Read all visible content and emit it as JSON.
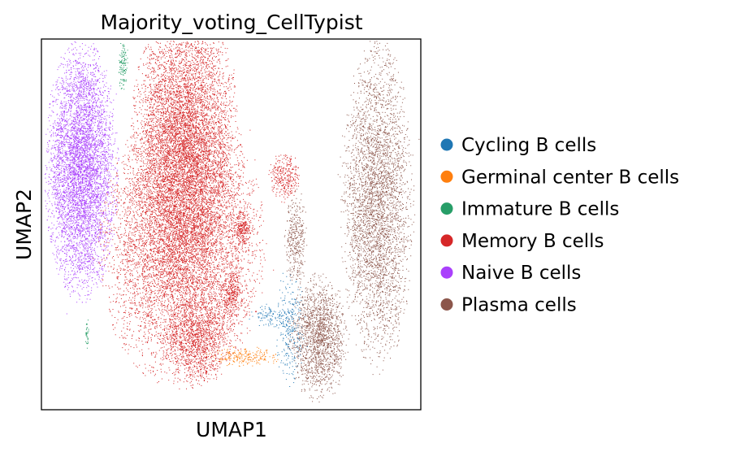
{
  "chart_data": {
    "type": "scatter",
    "title": "Majority_voting_CellTypist",
    "xlabel": "UMAP1",
    "ylabel": "UMAP2",
    "xlim": [
      0,
      10
    ],
    "ylim": [
      0,
      10
    ],
    "grid": false,
    "ticks": false,
    "legend_position": "right-outside",
    "legend": [
      {
        "label": "Cycling B cells",
        "color": "#1f77b4"
      },
      {
        "label": "Germinal center B cells",
        "color": "#ff7f0e"
      },
      {
        "label": "Immature B cells",
        "color": "#279e68"
      },
      {
        "label": "Memory B cells",
        "color": "#d62728"
      },
      {
        "label": "Naive B cells",
        "color": "#aa40fc"
      },
      {
        "label": "Plasma cells",
        "color": "#8c564b"
      }
    ],
    "series": [
      {
        "name": "Naive B cells",
        "color": "#aa40fc",
        "clusters": [
          {
            "cx": 1.05,
            "cy": 6.5,
            "sx": 0.42,
            "sy": 1.55,
            "n": 5500
          }
        ]
      },
      {
        "name": "Memory B cells",
        "color": "#d62728",
        "clusters": [
          {
            "cx": 3.8,
            "cy": 7.4,
            "sx": 0.62,
            "sy": 1.6,
            "n": 6500
          },
          {
            "cx": 3.7,
            "cy": 4.4,
            "sx": 0.95,
            "sy": 1.65,
            "n": 7500
          },
          {
            "cx": 4.1,
            "cy": 1.9,
            "sx": 0.4,
            "sy": 0.55,
            "n": 1100
          },
          {
            "cx": 5.3,
            "cy": 4.9,
            "sx": 0.12,
            "sy": 0.22,
            "n": 220
          },
          {
            "cx": 5.0,
            "cy": 3.1,
            "sx": 0.14,
            "sy": 0.3,
            "n": 280
          },
          {
            "cx": 6.4,
            "cy": 6.3,
            "sx": 0.18,
            "sy": 0.3,
            "n": 320
          }
        ]
      },
      {
        "name": "Plasma cells",
        "color": "#8c564b",
        "clusters": [
          {
            "cx": 8.85,
            "cy": 5.5,
            "sx": 0.42,
            "sy": 1.95,
            "n": 3800
          },
          {
            "cx": 7.3,
            "cy": 1.95,
            "sx": 0.35,
            "sy": 0.75,
            "n": 1700
          },
          {
            "cx": 6.7,
            "cy": 4.6,
            "sx": 0.13,
            "sy": 0.6,
            "n": 380
          }
        ]
      },
      {
        "name": "Cycling B cells",
        "color": "#1f77b4",
        "clusters": [
          {
            "cx": 6.55,
            "cy": 2.25,
            "sx": 0.18,
            "sy": 0.7,
            "n": 280
          },
          {
            "cx": 6.1,
            "cy": 2.55,
            "sx": 0.28,
            "sy": 0.14,
            "n": 110
          }
        ]
      },
      {
        "name": "Germinal center B cells",
        "color": "#ff7f0e",
        "clusters": [
          {
            "cx": 5.35,
            "cy": 1.45,
            "sx": 0.45,
            "sy": 0.12,
            "n": 240
          }
        ]
      },
      {
        "name": "Immature B cells",
        "color": "#279e68",
        "clusters": [
          {
            "cx": 2.15,
            "cy": 9.3,
            "sx": 0.06,
            "sy": 0.32,
            "n": 120
          },
          {
            "cx": 1.2,
            "cy": 2.1,
            "sx": 0.025,
            "sy": 0.22,
            "n": 35
          }
        ]
      }
    ]
  }
}
